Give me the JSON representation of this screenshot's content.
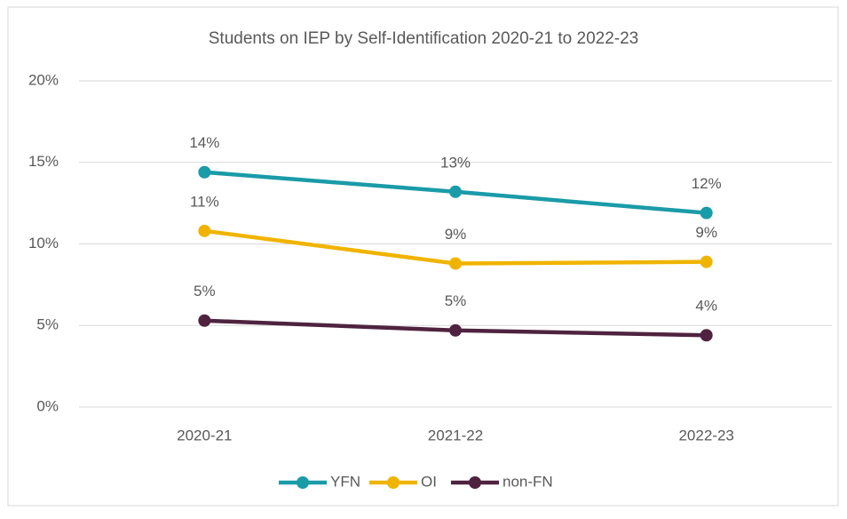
{
  "chart_data": {
    "type": "line",
    "title": "Students on IEP by Self-Identification 2020-21 to 2022-23",
    "categories": [
      "2020-21",
      "2021-22",
      "2022-23"
    ],
    "series": [
      {
        "name": "YFN",
        "color": "#1a9ba8",
        "values": [
          14.4,
          13.2,
          11.9
        ],
        "value_labels": [
          "14%",
          "13%",
          "12%"
        ]
      },
      {
        "name": "OI",
        "color": "#f0b400",
        "values": [
          10.8,
          8.8,
          8.9
        ],
        "value_labels": [
          "11%",
          "9%",
          "9%"
        ]
      },
      {
        "name": "non-FN",
        "color": "#4f2340",
        "values": [
          5.3,
          4.7,
          4.4
        ],
        "value_labels": [
          "5%",
          "5%",
          "4%"
        ]
      }
    ],
    "ylim": [
      0,
      20
    ],
    "yticks": [
      {
        "value": 0,
        "label": "0%"
      },
      {
        "value": 5,
        "label": "5%"
      },
      {
        "value": 10,
        "label": "10%"
      },
      {
        "value": 15,
        "label": "15%"
      },
      {
        "value": 20,
        "label": "20%"
      }
    ],
    "grid": true,
    "legend": "bottom"
  }
}
